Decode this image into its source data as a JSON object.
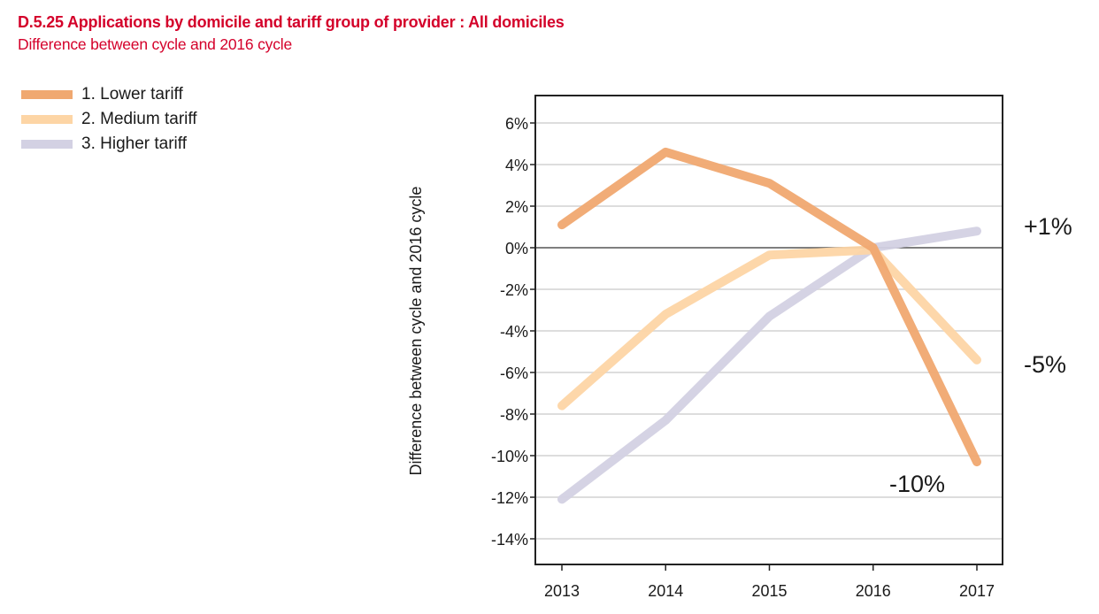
{
  "header": {
    "title": "D.5.25 Applications by domicile and tariff group of provider : All domiciles",
    "subtitle": "Difference between cycle and 2016 cycle"
  },
  "chart_data": {
    "type": "line",
    "title": "D.5.25 Applications by domicile and tariff group of provider : All domiciles",
    "subtitle": "Difference between cycle and 2016 cycle",
    "xlabel": "",
    "ylabel": "Difference between cycle and 2016 cycle",
    "x": [
      "2013",
      "2014",
      "2015",
      "2016",
      "2017"
    ],
    "ylim": [
      -15.5,
      7.3
    ],
    "yticks": [
      6,
      4,
      2,
      0,
      -2,
      -4,
      -6,
      -8,
      -10,
      -12,
      -14
    ],
    "ytick_labels": [
      "6%",
      "4%",
      "2%",
      "0%",
      "-2%",
      "-4%",
      "-6%",
      "-8%",
      "-10%",
      "-12%",
      "-14%"
    ],
    "grid": true,
    "legend_position": "top-left",
    "series": [
      {
        "name": "1. Lower tariff",
        "color": "#f0a870",
        "values": [
          1.1,
          4.6,
          3.1,
          0.0,
          -10.3
        ]
      },
      {
        "name": "2. Medium tariff",
        "color": "#fdd5a5",
        "values": [
          -7.6,
          -3.2,
          -0.35,
          -0.1,
          -5.4
        ]
      },
      {
        "name": "3. Higher tariff",
        "color": "#d3d1e3",
        "values": [
          -12.1,
          -8.3,
          -3.3,
          0.0,
          0.8
        ]
      }
    ],
    "annotations": [
      {
        "text": "+1%",
        "series": "3. Higher tariff",
        "value": 1
      },
      {
        "text": "-5%",
        "series": "2. Medium tariff",
        "value": -5
      },
      {
        "text": "-10%",
        "series": "1. Lower tariff",
        "value": -10
      }
    ]
  }
}
